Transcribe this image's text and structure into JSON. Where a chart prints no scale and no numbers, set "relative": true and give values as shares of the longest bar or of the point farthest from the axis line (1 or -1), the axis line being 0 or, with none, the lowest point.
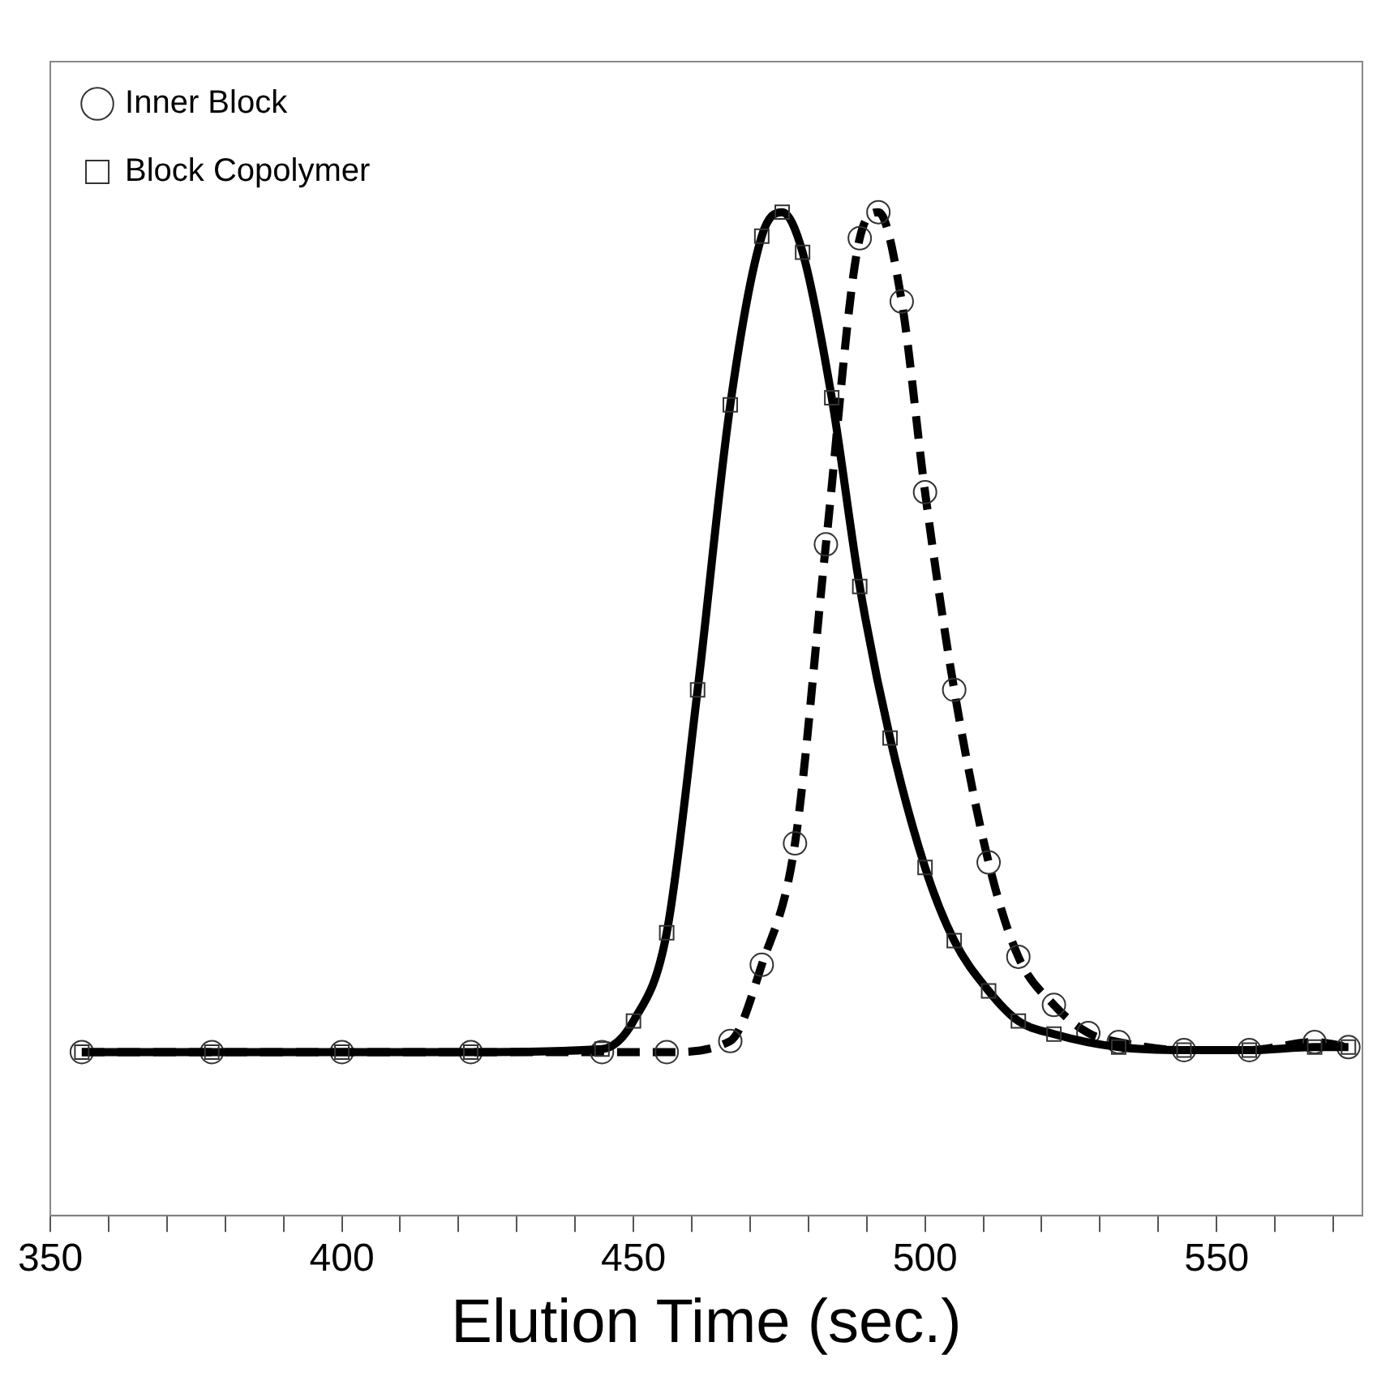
{
  "chart_data": {
    "type": "line",
    "xlabel": "Elution Time (sec.)",
    "relative": true,
    "xlim": [
      350,
      575
    ],
    "xticks": [
      350,
      {
        "value": 360,
        "label": null
      },
      {
        "value": 370,
        "label": null
      },
      {
        "value": 380,
        "label": null
      },
      {
        "value": 390,
        "label": null
      },
      400,
      {
        "value": 410,
        "label": null
      },
      {
        "value": 420,
        "label": null
      },
      {
        "value": 430,
        "label": null
      },
      {
        "value": 440,
        "label": null
      },
      450,
      {
        "value": 460,
        "label": null
      },
      {
        "value": 470,
        "label": null
      },
      {
        "value": 480,
        "label": null
      },
      {
        "value": 490,
        "label": null
      },
      500,
      {
        "value": 510,
        "label": null
      },
      {
        "value": 520,
        "label": null
      },
      {
        "value": 530,
        "label": null
      },
      {
        "value": 540,
        "label": null
      },
      550,
      {
        "value": 560,
        "label": null
      },
      {
        "value": 570,
        "label": null
      }
    ],
    "grid": false,
    "legend": "top left",
    "series": [
      {
        "name": "Inner Block",
        "color": "#000000",
        "line_style": "dashed",
        "marker": "circle",
        "x": [
          355.4,
          377.7,
          400,
          422.1,
          444.6,
          455.7,
          466.6,
          472,
          477.7,
          483,
          488.8,
          492,
          496,
          500,
          505,
          510.9,
          516,
          522.1,
          528,
          533.2,
          544.4,
          555.6,
          566.8,
          572.6
        ],
        "values": [
          0.163,
          0.163,
          0.163,
          0.163,
          0.163,
          0.163,
          0.174,
          0.25,
          0.371,
          0.669,
          0.974,
          1.0,
          0.911,
          0.721,
          0.524,
          0.352,
          0.258,
          0.21,
          0.182,
          0.173,
          0.165,
          0.165,
          0.173,
          0.168
        ]
      },
      {
        "name": "Block Copolymer",
        "color": "#000000",
        "line_style": "solid",
        "marker": "square",
        "x": [
          355.4,
          377.7,
          400,
          422.1,
          444.6,
          450,
          455.7,
          461,
          466.6,
          472,
          475.5,
          479,
          484,
          488.8,
          494,
          500,
          505,
          510.9,
          516,
          522.1,
          533.2,
          544.4,
          555.6,
          566.8,
          572.6
        ],
        "values": [
          0.163,
          0.163,
          0.163,
          0.163,
          0.166,
          0.194,
          0.282,
          0.524,
          0.808,
          0.976,
          1.0,
          0.96,
          0.815,
          0.627,
          0.476,
          0.347,
          0.274,
          0.224,
          0.194,
          0.181,
          0.168,
          0.165,
          0.165,
          0.168,
          0.168
        ]
      }
    ]
  }
}
